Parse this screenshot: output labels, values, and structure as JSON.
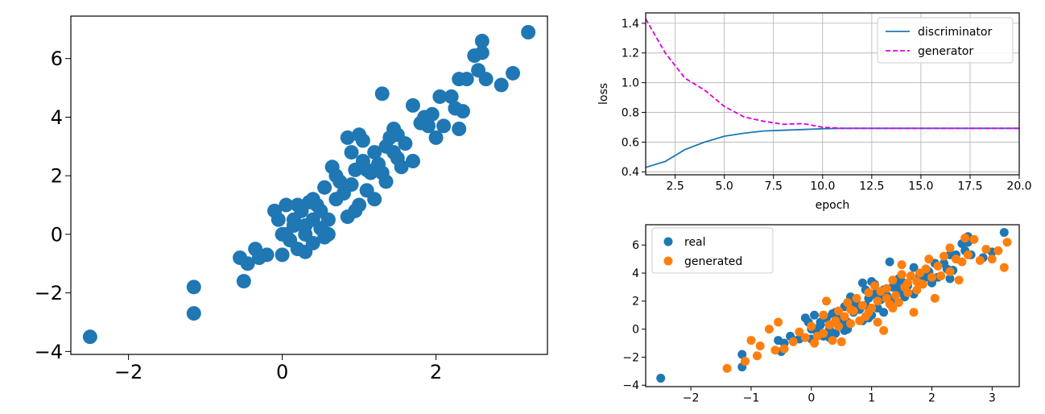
{
  "colors": {
    "blue": "#1f77b4",
    "orange": "#ff7f0e",
    "magenta": "#dd00dd",
    "grid": "#b0b0b0"
  },
  "chart_data": [
    {
      "type": "scatter",
      "title": "",
      "xlabel": "",
      "ylabel": "",
      "xlim": [
        -2.75,
        3.45
      ],
      "ylim": [
        -4.1,
        7.45
      ],
      "xticks": [
        -2,
        0,
        2
      ],
      "yticks": [
        -4,
        -2,
        0,
        2,
        4,
        6
      ],
      "grid": false,
      "series": [
        {
          "color": "#1f77b4",
          "points": [
            [
              -2.5,
              -3.5
            ],
            [
              -1.15,
              -1.8
            ],
            [
              -1.15,
              -2.7
            ],
            [
              -0.55,
              -0.8
            ],
            [
              -0.5,
              -1.6
            ],
            [
              -0.45,
              -1.0
            ],
            [
              -0.35,
              -0.5
            ],
            [
              -0.3,
              -0.8
            ],
            [
              -0.2,
              -0.7
            ],
            [
              0.0,
              -0.7
            ],
            [
              -0.1,
              0.8
            ],
            [
              -0.05,
              0.5
            ],
            [
              0.05,
              1.0
            ],
            [
              0.05,
              0.0
            ],
            [
              0.1,
              -0.2
            ],
            [
              0.15,
              0.3
            ],
            [
              0.2,
              1.0
            ],
            [
              0.2,
              -0.5
            ],
            [
              0.25,
              0.8
            ],
            [
              0.3,
              0.0
            ],
            [
              0.3,
              -0.6
            ],
            [
              0.35,
              1.1
            ],
            [
              0.4,
              0.5
            ],
            [
              0.4,
              -0.3
            ],
            [
              0.45,
              1.0
            ],
            [
              0.5,
              0.2
            ],
            [
              0.5,
              0.8
            ],
            [
              0.55,
              -0.1
            ],
            [
              0.55,
              1.6
            ],
            [
              0.6,
              0.0
            ],
            [
              0.65,
              2.3
            ],
            [
              0.7,
              2.0
            ],
            [
              0.75,
              1.8
            ],
            [
              0.8,
              1.4
            ],
            [
              0.85,
              0.6
            ],
            [
              0.85,
              3.3
            ],
            [
              0.9,
              2.8
            ],
            [
              0.9,
              1.7
            ],
            [
              0.95,
              0.8
            ],
            [
              0.95,
              2.2
            ],
            [
              1.0,
              3.4
            ],
            [
              1.0,
              1.0
            ],
            [
              1.05,
              2.5
            ],
            [
              1.05,
              3.2
            ],
            [
              1.1,
              2.2
            ],
            [
              1.1,
              1.5
            ],
            [
              1.15,
              2.1
            ],
            [
              1.2,
              2.8
            ],
            [
              1.25,
              2.4
            ],
            [
              1.3,
              2.1
            ],
            [
              1.35,
              1.8
            ],
            [
              1.3,
              4.8
            ],
            [
              1.35,
              3.0
            ],
            [
              1.4,
              3.3
            ],
            [
              1.45,
              2.8
            ],
            [
              1.45,
              3.6
            ],
            [
              1.5,
              2.6
            ],
            [
              1.5,
              3.4
            ],
            [
              1.55,
              2.3
            ],
            [
              1.6,
              3.1
            ],
            [
              1.7,
              2.5
            ],
            [
              1.7,
              4.4
            ],
            [
              1.8,
              3.8
            ],
            [
              1.85,
              4.0
            ],
            [
              1.9,
              3.7
            ],
            [
              1.95,
              4.1
            ],
            [
              2.0,
              3.3
            ],
            [
              2.05,
              4.7
            ],
            [
              2.1,
              3.7
            ],
            [
              2.2,
              4.7
            ],
            [
              2.25,
              4.3
            ],
            [
              2.3,
              5.3
            ],
            [
              2.3,
              3.6
            ],
            [
              2.35,
              4.2
            ],
            [
              2.4,
              5.3
            ],
            [
              2.5,
              6.1
            ],
            [
              2.55,
              5.6
            ],
            [
              2.6,
              6.6
            ],
            [
              2.6,
              6.2
            ],
            [
              2.65,
              5.3
            ],
            [
              2.85,
              5.1
            ],
            [
              3.0,
              5.5
            ],
            [
              3.2,
              6.9
            ],
            [
              0.0,
              0.0
            ],
            [
              0.15,
              0.5
            ],
            [
              0.3,
              0.3
            ],
            [
              0.6,
              0.5
            ],
            [
              1.2,
              1.2
            ],
            [
              0.7,
              1.2
            ],
            [
              0.4,
              1.2
            ]
          ]
        }
      ]
    },
    {
      "type": "line",
      "title": "",
      "xlabel": "epoch",
      "ylabel": "loss",
      "xlim": [
        1,
        20
      ],
      "ylim": [
        0.38,
        1.47
      ],
      "xticks": [
        2.5,
        5.0,
        7.5,
        10.0,
        12.5,
        15.0,
        17.5,
        20.0
      ],
      "yticks": [
        0.4,
        0.6,
        0.8,
        1.0,
        1.2,
        1.4
      ],
      "grid": true,
      "legend": "top-right",
      "x": [
        1,
        2,
        3,
        4,
        5,
        6,
        7,
        8,
        9,
        10,
        11,
        12,
        13,
        14,
        15,
        16,
        17,
        18,
        19,
        20
      ],
      "series": [
        {
          "name": "discriminator",
          "color": "#1f77b4",
          "dash": "solid",
          "values": [
            0.43,
            0.47,
            0.55,
            0.6,
            0.64,
            0.66,
            0.675,
            0.68,
            0.685,
            0.69,
            0.693,
            0.693,
            0.693,
            0.693,
            0.693,
            0.693,
            0.693,
            0.693,
            0.693,
            0.693
          ]
        },
        {
          "name": "generator",
          "color": "#dd00dd",
          "dash": "dashed",
          "values": [
            1.43,
            1.2,
            1.03,
            0.95,
            0.84,
            0.77,
            0.74,
            0.72,
            0.725,
            0.7,
            0.693,
            0.693,
            0.693,
            0.693,
            0.693,
            0.693,
            0.693,
            0.693,
            0.693,
            0.693
          ]
        }
      ]
    },
    {
      "type": "scatter",
      "title": "",
      "xlabel": "",
      "ylabel": "",
      "xlim": [
        -2.75,
        3.45
      ],
      "ylim": [
        -4.1,
        7.45
      ],
      "xticks": [
        -2,
        -1,
        0,
        1,
        2,
        3
      ],
      "yticks": [
        -4,
        -2,
        0,
        2,
        4,
        6
      ],
      "grid": false,
      "legend": "top-left",
      "series": [
        {
          "name": "real",
          "color": "#1f77b4",
          "points": "same as panel 1"
        },
        {
          "name": "generated",
          "color": "#ff7f0e",
          "points": [
            [
              -1.4,
              -2.8
            ],
            [
              -1.1,
              -2.3
            ],
            [
              -1.0,
              -0.8
            ],
            [
              -0.9,
              -1.9
            ],
            [
              -0.85,
              -1.2
            ],
            [
              -0.6,
              -1.5
            ],
            [
              -0.55,
              0.5
            ],
            [
              -0.45,
              -1.4
            ],
            [
              -0.3,
              -0.9
            ],
            [
              -0.2,
              -0.2
            ],
            [
              -0.1,
              -0.6
            ],
            [
              0.0,
              0.2
            ],
            [
              0.05,
              -1.0
            ],
            [
              0.1,
              -0.5
            ],
            [
              0.2,
              -0.3
            ],
            [
              0.2,
              1.0
            ],
            [
              0.3,
              0.3
            ],
            [
              0.35,
              -0.8
            ],
            [
              0.4,
              0.6
            ],
            [
              0.45,
              1.3
            ],
            [
              0.5,
              -0.9
            ],
            [
              0.55,
              0.9
            ],
            [
              0.6,
              1.9
            ],
            [
              0.65,
              0.4
            ],
            [
              0.7,
              1.3
            ],
            [
              0.75,
              2.2
            ],
            [
              0.8,
              0.6
            ],
            [
              0.85,
              1.7
            ],
            [
              0.9,
              0.9
            ],
            [
              0.95,
              2.6
            ],
            [
              1.0,
              1.5
            ],
            [
              1.05,
              3.1
            ],
            [
              1.1,
              0.5
            ],
            [
              1.1,
              2.0
            ],
            [
              1.15,
              2.7
            ],
            [
              1.2,
              -0.1
            ],
            [
              1.25,
              2.9
            ],
            [
              1.3,
              1.8
            ],
            [
              1.35,
              3.5
            ],
            [
              1.4,
              2.4
            ],
            [
              1.45,
              1.9
            ],
            [
              1.5,
              3.9
            ],
            [
              1.5,
              4.6
            ],
            [
              1.55,
              3.0
            ],
            [
              1.6,
              2.6
            ],
            [
              1.65,
              3.8
            ],
            [
              1.7,
              1.2
            ],
            [
              1.75,
              3.4
            ],
            [
              1.8,
              4.0
            ],
            [
              1.85,
              3.2
            ],
            [
              1.9,
              4.3
            ],
            [
              1.95,
              5.0
            ],
            [
              2.0,
              3.7
            ],
            [
              2.05,
              2.2
            ],
            [
              2.1,
              4.5
            ],
            [
              2.15,
              3.8
            ],
            [
              2.2,
              5.2
            ],
            [
              2.3,
              4.1
            ],
            [
              2.4,
              5.0
            ],
            [
              2.45,
              3.5
            ],
            [
              2.5,
              4.8
            ],
            [
              2.6,
              5.3
            ],
            [
              2.7,
              6.4
            ],
            [
              2.8,
              4.9
            ],
            [
              2.9,
              5.7
            ],
            [
              3.0,
              5.0
            ],
            [
              3.1,
              5.6
            ],
            [
              3.2,
              4.4
            ],
            [
              3.25,
              6.2
            ],
            [
              0.25,
              2.0
            ],
            [
              0.45,
              0.2
            ],
            [
              0.65,
              1.4
            ],
            [
              0.95,
              1.2
            ],
            [
              1.25,
              2.2
            ],
            [
              1.6,
              3.3
            ],
            [
              1.75,
              2.8
            ],
            [
              1.35,
              1.5
            ],
            [
              2.3,
              5.8
            ],
            [
              2.55,
              6.5
            ],
            [
              -0.7,
              0.0
            ]
          ]
        }
      ]
    }
  ]
}
